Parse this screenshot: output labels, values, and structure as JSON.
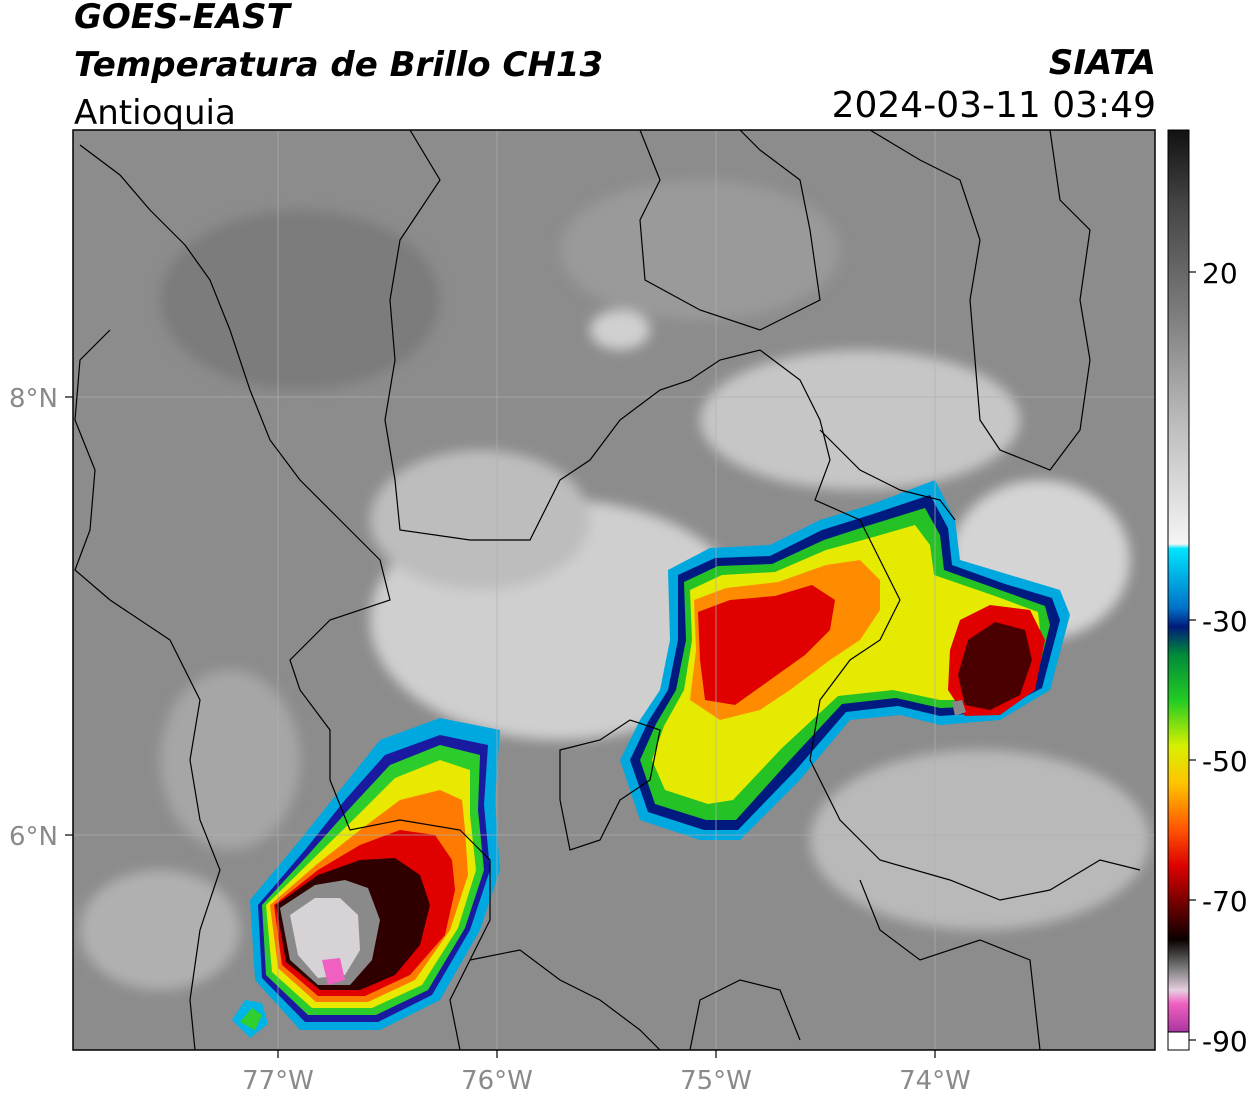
{
  "header": {
    "satellite": "GOES-EAST",
    "product": "Temperatura de Brillo CH13",
    "region": "Antioquia",
    "agency": "SIATA",
    "timestamp": "2024-03-11 03:49"
  },
  "axes": {
    "lon_ticks": [
      "77°W",
      "76°W",
      "75°W",
      "74°W"
    ],
    "lat_ticks": [
      "8°N",
      "6°N"
    ]
  },
  "colorbar": {
    "ticks": [
      "20",
      "-30",
      "-50",
      "-70",
      "-90"
    ]
  },
  "colors": {
    "background_gray": "#8c8c8c",
    "border_line": "#000000",
    "grid": "#b0b0b0",
    "axis_label": "#8a8a8a"
  }
}
